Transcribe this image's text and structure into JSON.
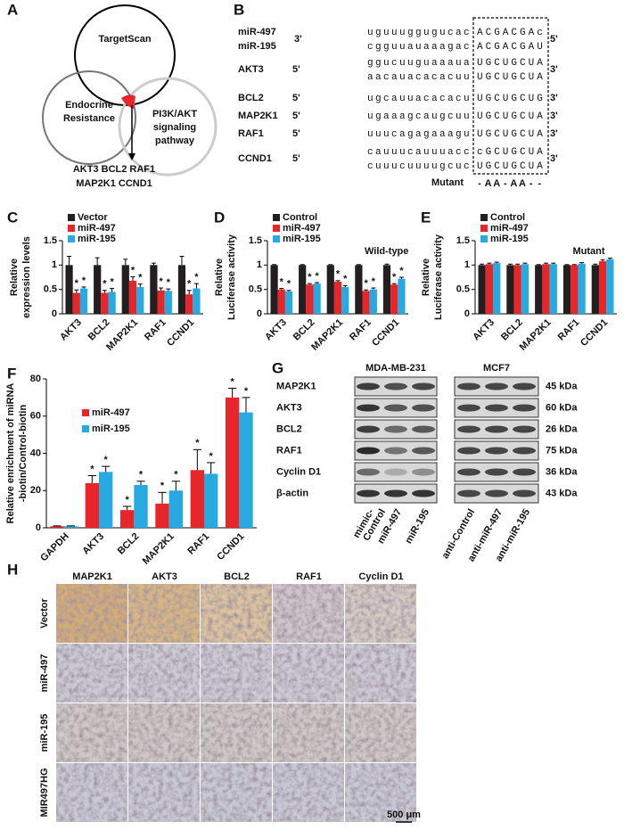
{
  "venn": {
    "letter": "A",
    "sets": [
      [
        "TargetScan"
      ],
      [
        "Endocrine",
        "Resistance"
      ],
      [
        "PI3K/AKT",
        "signaling",
        "pathway"
      ]
    ],
    "result": [
      "AKT3 BCL2 RAF1",
      "MAP2K1 CCND1"
    ]
  },
  "alignment": {
    "letter": "B",
    "rows": [
      {
        "label": "miR-497",
        "left": "3'",
        "seq": "uguuuggugucac",
        "seed": "ACGACGAc",
        "right": "5'"
      },
      {
        "label": "miR-195",
        "left": null,
        "seq": "cgguuauaaagac",
        "seed": "ACGACGAU",
        "right": null
      },
      {
        "label": "AKT3",
        "left": "5'",
        "seq": "ggucuuguaaaua",
        "seed": "UGCUGCUA",
        "right": "3'"
      },
      {
        "label": null,
        "left": null,
        "seq": "aacauacacacuu",
        "seed": "UGCUGCUA",
        "right": null
      },
      {
        "label": "BCL2",
        "left": "5'",
        "seq": "ugcauuacacacu",
        "seed": "UGCUGCUG",
        "right": "3'"
      },
      {
        "label": "MAP2K1",
        "left": "5'",
        "seq": "ugaaagcaugcuu",
        "seed": "UGCUGCUA",
        "right": "3'"
      },
      {
        "label": "RAF1",
        "left": "5'",
        "seq": "uuucagagaaagu",
        "seed": "UGCUGCUA",
        "right": "3'"
      },
      {
        "label": "CCND1",
        "left": "5'",
        "seq": "cauuucauuuacc",
        "seed": "cGCUGCUA",
        "right": "3'"
      },
      {
        "label": null,
        "left": null,
        "seq": "cuuucuuuugcuc",
        "seed": "UGCUGCUA",
        "right": null
      }
    ],
    "mutant_label": "Mutant",
    "mutations": [
      "-",
      "A",
      "A",
      "-",
      "A",
      "A",
      "-",
      "-"
    ],
    "mutation_colors": [
      "#e8262a",
      "#27aae1",
      "#27aae1",
      "#e8262a",
      "#27aae1",
      "#27aae1",
      "#e8262a",
      "#e8262a"
    ]
  },
  "blot": {
    "letter": "G",
    "proteins": [
      "MAP2K1",
      "AKT3",
      "BCL2",
      "RAF1",
      "Cyclin D1",
      "β-actin"
    ],
    "sizes": [
      "45 kDa",
      "60 kDa",
      "26 kDa",
      "75 kDa",
      "36 kDa",
      "43 kDa"
    ],
    "groups": [
      {
        "name": "MDA-MB-231",
        "lanes": [
          [
            "mimic-",
            "Control"
          ],
          [
            "miR-497"
          ],
          [
            "miR-195"
          ]
        ]
      },
      {
        "name": "MCF7",
        "lanes": [
          [
            "anti-Control"
          ],
          [
            "anti-miR-497"
          ],
          [
            "anti-miR-195"
          ]
        ]
      }
    ]
  },
  "ihc": {
    "letter": "H",
    "columns": [
      "MAP2K1",
      "AKT3",
      "BCL2",
      "RAF1",
      "Cyclin D1"
    ],
    "rows": [
      "Vector",
      "miR-497",
      "miR-195",
      "MIR497HG"
    ],
    "scale_bar": "500 μm"
  },
  "chart_data": [
    {
      "letter": "C",
      "type": "bar",
      "ylabel": [
        "Relative",
        "expression levels"
      ],
      "categories": [
        "AKT3",
        "BCL2",
        "MAP2K1",
        "RAF1",
        "CCND1"
      ],
      "series": [
        {
          "name": "Vector",
          "color": "#231f20",
          "values": [
            1,
            1,
            1,
            1,
            1
          ],
          "errors": [
            0.18,
            0.15,
            0.12,
            0.04,
            0.18
          ]
        },
        {
          "name": "miR-497",
          "color": "#e8262a",
          "values": [
            0.43,
            0.43,
            0.68,
            0.48,
            0.4
          ],
          "errors": [
            0.06,
            0.05,
            0.08,
            0.05,
            0.08
          ],
          "significance": [
            "*",
            "*",
            "*",
            "*",
            "*"
          ]
        },
        {
          "name": "miR-195",
          "color": "#27aae1",
          "values": [
            0.52,
            0.45,
            0.55,
            0.47,
            0.52
          ],
          "errors": [
            0.03,
            0.07,
            0.06,
            0.04,
            0.1
          ],
          "significance": [
            "*",
            "*",
            "*",
            "*",
            "*"
          ]
        }
      ],
      "ylim": [
        0,
        1.5
      ],
      "yticks": [
        0,
        0.5,
        1,
        1.5
      ],
      "legend": "top-left"
    },
    {
      "letter": "D",
      "type": "bar",
      "ylabel": [
        "Relative",
        "Luciferase activity"
      ],
      "annotation": "Wild-type",
      "categories": [
        "AKT3",
        "BCL2",
        "MAP2K1",
        "RAF1",
        "CCND1"
      ],
      "series": [
        {
          "name": "Control",
          "color": "#231f20",
          "values": [
            1,
            1,
            1,
            1,
            1
          ],
          "errors": [
            0.01,
            0.01,
            0.01,
            0.01,
            0.02
          ]
        },
        {
          "name": "miR-497",
          "color": "#e8262a",
          "values": [
            0.5,
            0.6,
            0.66,
            0.47,
            0.6
          ],
          "errors": [
            0.02,
            0.02,
            0.02,
            0.02,
            0.02
          ],
          "significance": [
            "*",
            "*",
            "*",
            "*",
            "*"
          ]
        },
        {
          "name": "miR-195",
          "color": "#27aae1",
          "values": [
            0.46,
            0.62,
            0.55,
            0.5,
            0.72
          ],
          "errors": [
            0.02,
            0.02,
            0.03,
            0.03,
            0.03
          ],
          "significance": [
            "*",
            "*",
            "*",
            "*",
            "*"
          ]
        }
      ],
      "ylim": [
        0,
        1.5
      ],
      "yticks": [
        0,
        0.5,
        1,
        1.5
      ],
      "legend": "top-left"
    },
    {
      "letter": "E",
      "type": "bar",
      "ylabel": [
        "Relative",
        "Luciferase activity"
      ],
      "annotation": "Mutant",
      "categories": [
        "AKT3",
        "BCL2",
        "MAP2K1",
        "RAF1",
        "CCND1"
      ],
      "series": [
        {
          "name": "Control",
          "color": "#231f20",
          "values": [
            1,
            1,
            1,
            1,
            1
          ],
          "errors": [
            0.02,
            0.02,
            0.01,
            0.01,
            0.02
          ]
        },
        {
          "name": "miR-497",
          "color": "#e8262a",
          "values": [
            1.02,
            1,
            1.02,
            1,
            1.08
          ],
          "errors": [
            0.02,
            0.02,
            0.02,
            0.01,
            0.03
          ]
        },
        {
          "name": "miR-195",
          "color": "#27aae1",
          "values": [
            1.04,
            1.02,
            1.02,
            1.03,
            1.12
          ],
          "errors": [
            0.02,
            0.02,
            0.02,
            0.02,
            0.02
          ]
        }
      ],
      "ylim": [
        0,
        1.5
      ],
      "yticks": [
        0,
        0.5,
        1,
        1.5
      ],
      "legend": "top-left"
    },
    {
      "letter": "F",
      "type": "bar",
      "ylabel": [
        "Relative enrichment of miRNA",
        "-biotin/Control-biotin"
      ],
      "categories": [
        "GAPDH",
        "AKT3",
        "BCL2",
        "MAP2K1",
        "RAF1",
        "CCND1"
      ],
      "series": [
        {
          "name": "miR-497",
          "color": "#e8262a",
          "values": [
            0.8,
            24,
            9.5,
            13,
            31,
            70
          ],
          "errors": [
            0.2,
            4,
            2,
            6,
            11,
            5
          ],
          "significance": [
            null,
            "*",
            "*",
            "*",
            "*",
            "*"
          ]
        },
        {
          "name": "miR-195",
          "color": "#27aae1",
          "values": [
            0.8,
            30,
            23,
            20,
            29,
            62
          ],
          "errors": [
            0.2,
            3,
            2,
            5,
            6,
            8
          ],
          "significance": [
            null,
            "*",
            "*",
            "*",
            "*",
            "*"
          ]
        }
      ],
      "ylim": [
        0,
        80
      ],
      "yticks": [
        0,
        20,
        40,
        60,
        80
      ],
      "legend": "upper-left"
    }
  ]
}
